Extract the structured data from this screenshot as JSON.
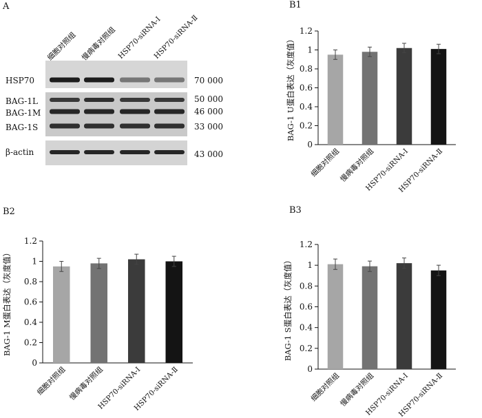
{
  "panel_a": {
    "letter": "A",
    "lanes": [
      "细胞对照组",
      "慢病毒对照组",
      "HSP70-siRNA-Ⅰ",
      "HSP70-siRNA-Ⅱ"
    ],
    "bands": [
      {
        "name": "HSP70",
        "mw": "70 000"
      },
      {
        "name": "BAG-1L",
        "mw": "50 000"
      },
      {
        "name": "BAG-1M",
        "mw": "46 000"
      },
      {
        "name": "BAG-1S",
        "mw": "33 000"
      },
      {
        "name": "β-actin",
        "mw": "43 000"
      }
    ],
    "band_intensity": {
      "HSP70": [
        0.95,
        0.95,
        0.45,
        0.45
      ],
      "BAG-1L": [
        0.8,
        0.85,
        0.8,
        0.8
      ],
      "BAG-1M": [
        0.9,
        0.9,
        0.9,
        0.9
      ],
      "BAG-1S": [
        0.85,
        0.85,
        0.85,
        0.85
      ],
      "β-actin": [
        0.9,
        0.9,
        0.9,
        0.9
      ]
    }
  },
  "chart_data": [
    {
      "panel": "B1",
      "type": "bar",
      "categories": [
        "细胞对照组",
        "慢病毒对照组",
        "HSP70-siRNA-Ⅰ",
        "HSP70-siRNA-Ⅱ"
      ],
      "values": [
        0.95,
        0.98,
        1.02,
        1.01
      ],
      "errors": [
        0.05,
        0.05,
        0.05,
        0.05
      ],
      "colors": [
        "#a6a6a6",
        "#737373",
        "#3b3b3b",
        "#141414"
      ],
      "ylabel": "BAG-1 U蛋白表达（灰度值）",
      "ylim": [
        0,
        1.2
      ],
      "yticks": [
        "0",
        "0.2",
        "0.4",
        "0.6",
        "0.8",
        "1",
        "1.2"
      ]
    },
    {
      "panel": "B2",
      "type": "bar",
      "categories": [
        "细胞对照组",
        "慢病毒对照组",
        "HSP70-siRNA-Ⅰ",
        "HSP70-siRNA-Ⅱ"
      ],
      "values": [
        0.95,
        0.98,
        1.02,
        1.0
      ],
      "errors": [
        0.05,
        0.05,
        0.05,
        0.05
      ],
      "colors": [
        "#a6a6a6",
        "#737373",
        "#3b3b3b",
        "#141414"
      ],
      "ylabel": "BAG-1 M蛋白表达（灰度值）",
      "ylim": [
        0,
        1.2
      ],
      "yticks": [
        "0",
        "0.2",
        "0.4",
        "0.6",
        "0.8",
        "1",
        "1.2"
      ]
    },
    {
      "panel": "B3",
      "type": "bar",
      "categories": [
        "细胞对照组",
        "慢病毒对照组",
        "HSP70-siRNA-Ⅰ",
        "HSP70-siRNA-Ⅱ"
      ],
      "values": [
        1.01,
        0.99,
        1.02,
        0.95
      ],
      "errors": [
        0.05,
        0.05,
        0.05,
        0.05
      ],
      "colors": [
        "#a6a6a6",
        "#737373",
        "#3b3b3b",
        "#141414"
      ],
      "ylabel": "BAG-1 S蛋白表达（灰度值）",
      "ylim": [
        0,
        1.2
      ],
      "yticks": [
        "0",
        "0.2",
        "0.4",
        "0.6",
        "0.8",
        "1",
        "1.2"
      ]
    }
  ]
}
